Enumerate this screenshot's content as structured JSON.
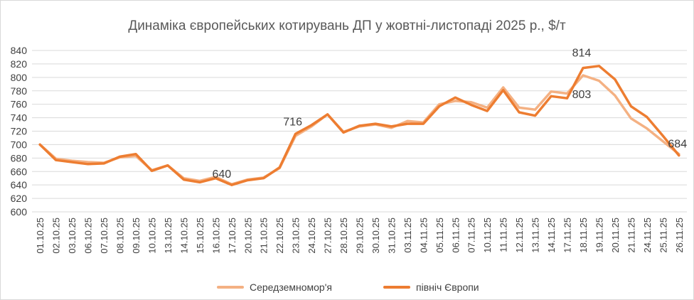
{
  "chart_data": {
    "type": "line",
    "title": "Динаміка європейських котирувань ДП у жовтні-листопаді 2025 р., $/т",
    "xlabel": "",
    "ylabel": "",
    "ylim": [
      600,
      840
    ],
    "yticks": [
      600,
      620,
      640,
      660,
      680,
      700,
      720,
      740,
      760,
      780,
      800,
      820,
      840
    ],
    "grid": true,
    "legend_position": "bottom",
    "categories": [
      "01.10.25",
      "02.10.25",
      "03.10.25",
      "06.10.25",
      "07.10.25",
      "08.10.25",
      "09.10.25",
      "10.10.25",
      "13.10.25",
      "14.10.25",
      "15.10.25",
      "16.10.25",
      "17.10.25",
      "20.10.25",
      "21.10.25",
      "22.10.25",
      "23.10.25",
      "24.10.25",
      "27.10.25",
      "28.10.25",
      "29.10.25",
      "30.10.25",
      "31.10.25",
      "03.11.25",
      "04.11.25",
      "05.11.25",
      "06.11.25",
      "07.11.25",
      "10.11.25",
      "11.11.25",
      "12.11.25",
      "13.11.25",
      "14.11.25",
      "17.11.25",
      "18.11.25",
      "19.11.25",
      "20.11.25",
      "21.11.25",
      "24.11.25",
      "25.11.25",
      "26.11.25"
    ],
    "series": [
      {
        "name": "Середземномор'я",
        "color": "#f4b183",
        "values": [
          700,
          679,
          676,
          674,
          673,
          681,
          683,
          662,
          669,
          650,
          646,
          652,
          641,
          648,
          651,
          665,
          713,
          727,
          745,
          719,
          727,
          730,
          725,
          735,
          733,
          760,
          765,
          763,
          755,
          785,
          755,
          752,
          779,
          776,
          803,
          795,
          773,
          739,
          724,
          705,
          686
        ]
      },
      {
        "name": "північ Європи",
        "color": "#ed7d31",
        "values": [
          700,
          677,
          674,
          671,
          672,
          682,
          686,
          661,
          669,
          648,
          644,
          650,
          640,
          647,
          650,
          666,
          716,
          729,
          745,
          718,
          728,
          731,
          727,
          731,
          731,
          757,
          770,
          759,
          750,
          781,
          748,
          743,
          772,
          769,
          814,
          817,
          797,
          757,
          741,
          713,
          684
        ]
      }
    ],
    "annotations": [
      {
        "category": "17.10.25",
        "series": "північ Європи",
        "text": "640"
      },
      {
        "category": "23.10.25",
        "series": "північ Європи",
        "text": "716"
      },
      {
        "category": "18.11.25",
        "series": "північ Європи",
        "text": "814"
      },
      {
        "category": "18.11.25",
        "series": "Середземномор'я",
        "text": "803"
      },
      {
        "category": "26.11.25",
        "series": "північ Європи",
        "text": "684"
      }
    ]
  }
}
